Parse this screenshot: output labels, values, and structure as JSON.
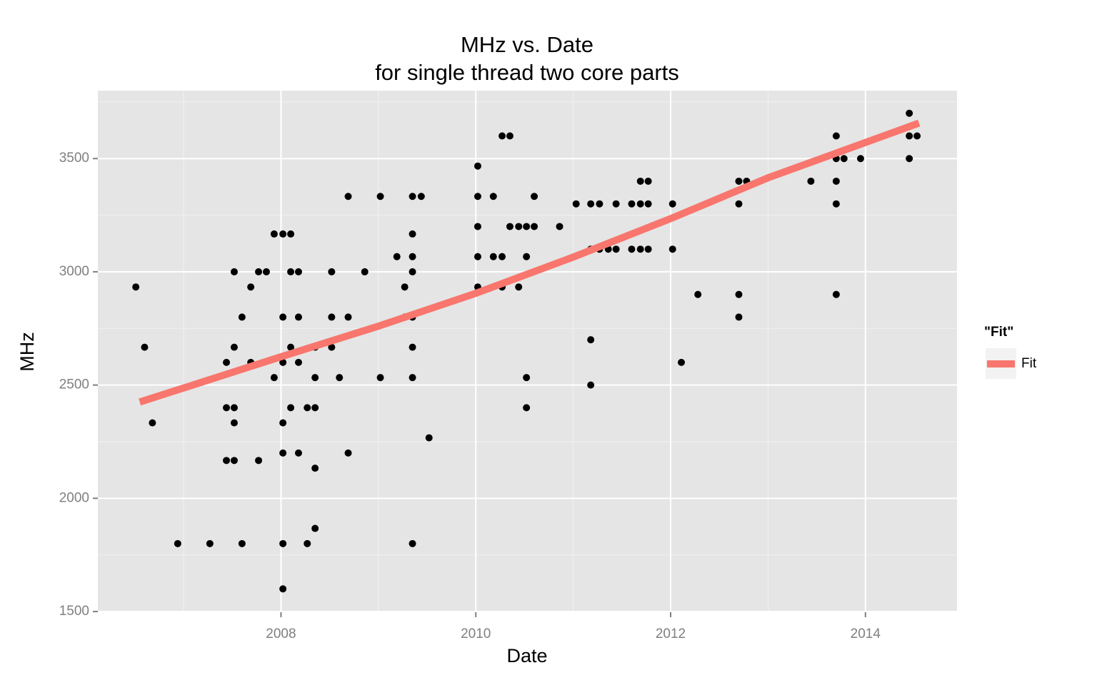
{
  "chart_data": {
    "type": "scatter",
    "title": "MHz vs. Date",
    "subtitle": "for single thread two core parts",
    "x_label": "Date",
    "y_label": "MHz",
    "xlim": [
      2006.12,
      2014.94
    ],
    "xticks": [
      2008,
      2010,
      2012,
      2014
    ],
    "xminor": [
      2007,
      2009,
      2011,
      2013
    ],
    "ylim": [
      1497,
      3800
    ],
    "yticks": [
      1500,
      2000,
      2500,
      3000,
      3500
    ],
    "yminor": [
      1750,
      2250,
      2750,
      3250,
      3750
    ],
    "grid": true,
    "points": {
      "color": "#000000",
      "x": [
        2006.51,
        2006.6,
        2006.68,
        2006.94,
        2007.27,
        2007.44,
        2007.44,
        2007.44,
        2007.52,
        2007.52,
        2007.52,
        2007.52,
        2007.52,
        2007.6,
        2007.6,
        2007.69,
        2007.69,
        2007.77,
        2007.77,
        2007.85,
        2007.93,
        2007.93,
        2008.02,
        2008.02,
        2008.02,
        2008.02,
        2008.02,
        2008.02,
        2008.02,
        2008.1,
        2008.1,
        2008.1,
        2008.1,
        2008.18,
        2008.18,
        2008.18,
        2008.18,
        2008.27,
        2008.27,
        2008.35,
        2008.35,
        2008.35,
        2008.35,
        2008.35,
        2008.52,
        2008.52,
        2008.52,
        2008.6,
        2008.69,
        2008.69,
        2008.69,
        2008.86,
        2009.02,
        2009.02,
        2009.19,
        2009.27,
        2009.27,
        2009.35,
        2009.35,
        2009.35,
        2009.35,
        2009.35,
        2009.35,
        2009.35,
        2009.35,
        2009.44,
        2009.52,
        2010.02,
        2010.02,
        2010.02,
        2010.02,
        2010.02,
        2010.18,
        2010.18,
        2010.27,
        2010.27,
        2010.27,
        2010.35,
        2010.35,
        2010.44,
        2010.44,
        2010.52,
        2010.52,
        2010.52,
        2010.52,
        2010.6,
        2010.6,
        2010.86,
        2011.03,
        2011.18,
        2011.18,
        2011.18,
        2011.18,
        2011.27,
        2011.27,
        2011.36,
        2011.44,
        2011.44,
        2011.6,
        2011.6,
        2011.69,
        2011.69,
        2011.69,
        2011.77,
        2011.77,
        2011.77,
        2012.02,
        2012.02,
        2012.11,
        2012.28,
        2012.7,
        2012.7,
        2012.7,
        2012.7,
        2012.78,
        2013.44,
        2013.7,
        2013.7,
        2013.7,
        2013.7,
        2013.7,
        2013.78,
        2013.95,
        2014.45,
        2014.45,
        2014.45,
        2014.53
      ],
      "values": [
        2933,
        2667,
        2333,
        1800,
        1800,
        2600,
        2400,
        2167,
        3000,
        2667,
        2400,
        2333,
        2167,
        2800,
        1800,
        2933,
        2600,
        3000,
        2167,
        3000,
        3167,
        2533,
        3167,
        2800,
        2600,
        2333,
        2200,
        1800,
        1600,
        3167,
        3000,
        2667,
        2400,
        3000,
        2800,
        2600,
        2200,
        2400,
        1800,
        2667,
        2533,
        2400,
        2133,
        1867,
        3000,
        2800,
        2667,
        2533,
        3333,
        2800,
        2200,
        3000,
        3333,
        2533,
        3067,
        2933,
        2800,
        3333,
        3167,
        3067,
        3000,
        2800,
        2667,
        2533,
        1800,
        3333,
        2267,
        3467,
        3333,
        3200,
        3067,
        2933,
        3333,
        3067,
        3600,
        3067,
        2933,
        3600,
        3200,
        3200,
        2933,
        3200,
        3067,
        2533,
        2400,
        3333,
        3200,
        3200,
        3300,
        3300,
        3100,
        2700,
        2500,
        3300,
        3100,
        3100,
        3300,
        3100,
        3300,
        3100,
        3400,
        3300,
        3100,
        3400,
        3300,
        3100,
        3300,
        3100,
        2600,
        2900,
        3400,
        3300,
        2900,
        2800,
        3400,
        3400,
        3600,
        3500,
        3400,
        3300,
        2900,
        3500,
        3500,
        3700,
        3600,
        3500,
        3600
      ]
    },
    "legend_title": "\"Fit\"",
    "series": [
      {
        "name": "Fit",
        "color": "#F8766D",
        "x": [
          2006.55,
          2008,
          2009,
          2010,
          2011,
          2012,
          2013,
          2014.55
        ],
        "values": [
          2425,
          2625,
          2760,
          2905,
          3065,
          3235,
          3415,
          3657
        ]
      }
    ]
  }
}
